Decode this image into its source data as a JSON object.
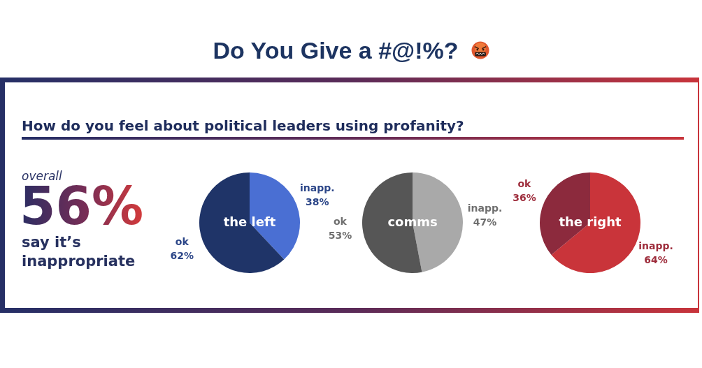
{
  "chart_data": [
    {
      "type": "other",
      "title": "Do You Give a #@!%?",
      "subtitle": "How do you feel about political leaders using profanity?",
      "annotations": [
        "overall",
        "56%",
        "say it’s inappropriate"
      ]
    },
    {
      "type": "pie",
      "title": "the left",
      "categories": [
        "inapp.",
        "ok"
      ],
      "values": [
        38,
        62
      ],
      "colors": [
        "#4a6fd3",
        "#1f3468"
      ],
      "value_labels": [
        "38%",
        "62%"
      ]
    },
    {
      "type": "pie",
      "title": "comms",
      "categories": [
        "inapp.",
        "ok"
      ],
      "values": [
        47,
        53
      ],
      "colors": [
        "#a9a9a9",
        "#565656"
      ],
      "value_labels": [
        "47%",
        "53%"
      ]
    },
    {
      "type": "pie",
      "title": "the right",
      "categories": [
        "inapp.",
        "ok"
      ],
      "values": [
        64,
        36
      ],
      "colors": [
        "#c9343a",
        "#8c2a3d"
      ],
      "value_labels": [
        "64%",
        "36%"
      ]
    }
  ]
}
